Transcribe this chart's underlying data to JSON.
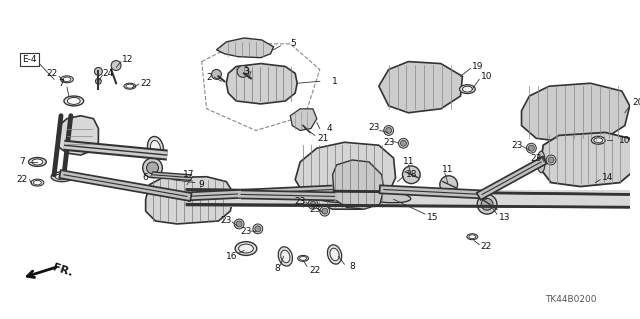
{
  "background_color": "#ffffff",
  "diagram_code": "TK44B0200",
  "figsize": [
    6.4,
    3.19
  ],
  "dpi": 100,
  "line_color": "#333333",
  "label_font_size": 7.0,
  "text_color": "#111111"
}
